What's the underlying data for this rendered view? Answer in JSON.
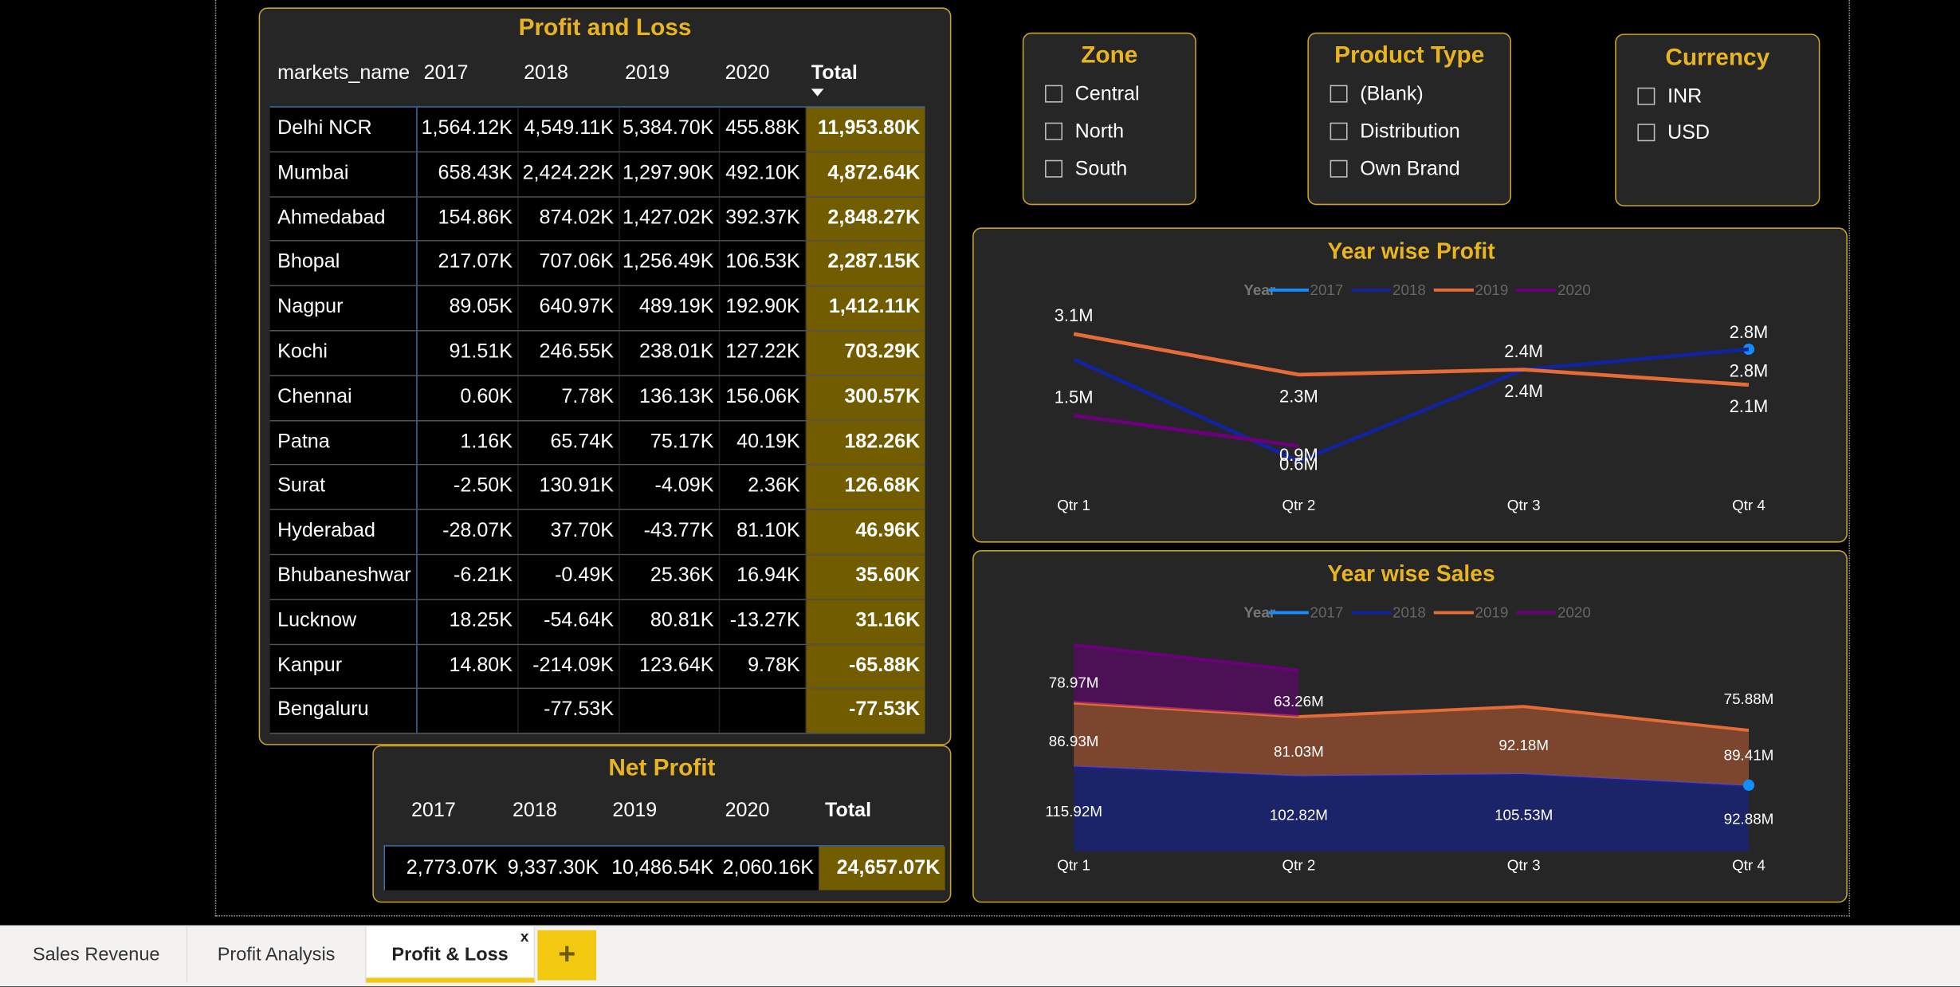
{
  "pl": {
    "title": "Profit and Loss",
    "headers": [
      "markets_name",
      "2017",
      "2018",
      "2019",
      "2020",
      "Total"
    ],
    "rows": [
      {
        "name": "Delhi NCR",
        "v": [
          "1,564.12K",
          "4,549.11K",
          "5,384.70K",
          "455.88K"
        ],
        "total": "11,953.80K"
      },
      {
        "name": "Mumbai",
        "v": [
          "658.43K",
          "2,424.22K",
          "1,297.90K",
          "492.10K"
        ],
        "total": "4,872.64K"
      },
      {
        "name": "Ahmedabad",
        "v": [
          "154.86K",
          "874.02K",
          "1,427.02K",
          "392.37K"
        ],
        "total": "2,848.27K"
      },
      {
        "name": "Bhopal",
        "v": [
          "217.07K",
          "707.06K",
          "1,256.49K",
          "106.53K"
        ],
        "total": "2,287.15K"
      },
      {
        "name": "Nagpur",
        "v": [
          "89.05K",
          "640.97K",
          "489.19K",
          "192.90K"
        ],
        "total": "1,412.11K"
      },
      {
        "name": "Kochi",
        "v": [
          "91.51K",
          "246.55K",
          "238.01K",
          "127.22K"
        ],
        "total": "703.29K"
      },
      {
        "name": "Chennai",
        "v": [
          "0.60K",
          "7.78K",
          "136.13K",
          "156.06K"
        ],
        "total": "300.57K"
      },
      {
        "name": "Patna",
        "v": [
          "1.16K",
          "65.74K",
          "75.17K",
          "40.19K"
        ],
        "total": "182.26K"
      },
      {
        "name": "Surat",
        "v": [
          "-2.50K",
          "130.91K",
          "-4.09K",
          "2.36K"
        ],
        "total": "126.68K"
      },
      {
        "name": "Hyderabad",
        "v": [
          "-28.07K",
          "37.70K",
          "-43.77K",
          "81.10K"
        ],
        "total": "46.96K"
      },
      {
        "name": "Bhubaneshwar",
        "v": [
          "-6.21K",
          "-0.49K",
          "25.36K",
          "16.94K"
        ],
        "total": "35.60K"
      },
      {
        "name": "Lucknow",
        "v": [
          "18.25K",
          "-54.64K",
          "80.81K",
          "-13.27K"
        ],
        "total": "31.16K"
      },
      {
        "name": "Kanpur",
        "v": [
          "14.80K",
          "-214.09K",
          "123.64K",
          "9.78K"
        ],
        "total": "-65.88K"
      },
      {
        "name": "Bengaluru",
        "v": [
          "",
          "-77.53K",
          "",
          ""
        ],
        "total": "-77.53K"
      }
    ]
  },
  "net_profit": {
    "title": "Net Profit",
    "headers": [
      "2017",
      "2018",
      "2019",
      "2020",
      "Total"
    ],
    "values": [
      "2,773.07K",
      "9,337.30K",
      "10,486.54K",
      "2,060.16K"
    ],
    "total": "24,657.07K"
  },
  "slicers": {
    "zone": {
      "title": "Zone",
      "items": [
        "Central",
        "North",
        "South"
      ]
    },
    "product_type": {
      "title": "Product Type",
      "items": [
        "(Blank)",
        "Distribution",
        "Own Brand"
      ]
    },
    "currency": {
      "title": "Currency",
      "items": [
        "INR",
        "USD"
      ]
    }
  },
  "colors": {
    "2017": "#118dff",
    "2018": "#12239e",
    "2019": "#e66c37",
    "2020": "#6b007b",
    "accent": "#e8b420",
    "total_bg": "#725c00"
  },
  "chart_data": [
    {
      "type": "line",
      "title": "Year wise Profit",
      "legend_title": "Year",
      "legend_position": "top",
      "categories": [
        "Qtr 1",
        "Qtr 2",
        "Qtr 3",
        "Qtr 4"
      ],
      "series": [
        {
          "name": "2017",
          "values": [
            null,
            null,
            null,
            2.8
          ],
          "labels": [
            "",
            "",
            "",
            "2.8M"
          ]
        },
        {
          "name": "2018",
          "values": [
            2.6,
            0.6,
            2.4,
            2.8
          ],
          "labels": [
            "",
            "0.6M",
            "2.4M",
            "2.8M"
          ]
        },
        {
          "name": "2019",
          "values": [
            3.1,
            2.3,
            2.4,
            2.1
          ],
          "labels": [
            "3.1M",
            "2.3M",
            "2.4M",
            "2.1M"
          ]
        },
        {
          "name": "2020",
          "values": [
            1.5,
            0.9,
            null,
            null
          ],
          "labels": [
            "1.5M",
            "0.9M",
            "",
            ""
          ]
        }
      ],
      "ylim": [
        0.5,
        3.2
      ]
    },
    {
      "type": "area",
      "title": "Year wise Sales",
      "legend_title": "Year",
      "legend_position": "top",
      "stacked": true,
      "categories": [
        "Qtr 1",
        "Qtr 2",
        "Qtr 3",
        "Qtr 4"
      ],
      "series": [
        {
          "name": "2017",
          "values": [
            null,
            null,
            null,
            92.88
          ],
          "labels": [
            "",
            "",
            "",
            "92.88M"
          ]
        },
        {
          "name": "2018",
          "values": [
            115.92,
            102.82,
            105.53,
            89.41
          ],
          "labels": [
            "115.92M",
            "102.82M",
            "105.53M",
            "89.41M"
          ]
        },
        {
          "name": "2019",
          "values": [
            86.93,
            81.03,
            92.18,
            75.88
          ],
          "labels": [
            "86.93M",
            "81.03M",
            "92.18M",
            "75.88M"
          ]
        },
        {
          "name": "2020",
          "values": [
            78.97,
            63.26,
            null,
            null
          ],
          "labels": [
            "78.97M",
            "63.26M",
            "",
            ""
          ]
        }
      ],
      "ylim": [
        0,
        290
      ]
    }
  ],
  "tabs": [
    {
      "label": "Sales Revenue"
    },
    {
      "label": "Profit Analysis"
    },
    {
      "label": "Profit & Loss",
      "active": true
    }
  ],
  "tab_close": "x",
  "add_tab": "+"
}
